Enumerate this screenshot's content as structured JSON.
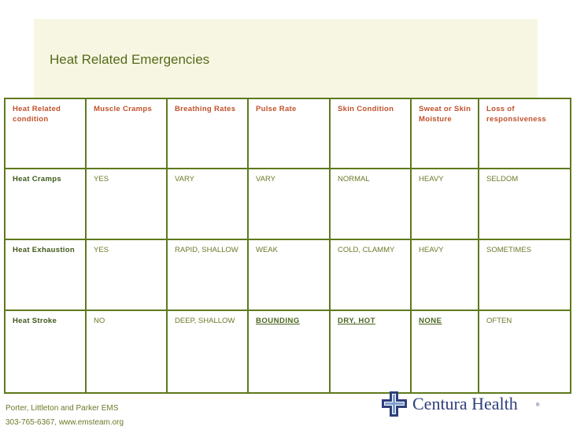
{
  "title": "Heat Related Emergencies",
  "table": {
    "headers": [
      "Heat Related condition",
      "Muscle Cramps",
      "Breathing Rates",
      "Pulse Rate",
      "Skin Condition",
      "Sweat or Skin Moisture",
      "Loss of responsiveness"
    ],
    "rows": [
      [
        "Heat Cramps",
        "YES",
        "VARY",
        "VARY",
        "NORMAL",
        "HEAVY",
        "SELDOM"
      ],
      [
        "Heat Exhaustion",
        "YES",
        "RAPID, SHALLOW",
        "WEAK",
        "COLD, CLAMMY",
        "HEAVY",
        "SOMETIMES"
      ],
      [
        "Heat Stroke",
        "NO",
        "DEEP, SHALLOW",
        "BOUNDING",
        "DRY, HOT",
        "NONE",
        "OFTEN"
      ]
    ]
  },
  "footer": {
    "line1": "Porter, Littleton and Parker EMS",
    "line2": "303-765-6367, www.emsteam.org"
  },
  "logo": {
    "name": "Centura Health",
    "registered": "®",
    "icon": "cross-logo-icon"
  },
  "colors": {
    "title": "#556b1a",
    "header_text": "#c0512b",
    "grid_border": "#5e7a1c",
    "title_band": "#f7f6e3",
    "logo": "#2f3f7a"
  }
}
